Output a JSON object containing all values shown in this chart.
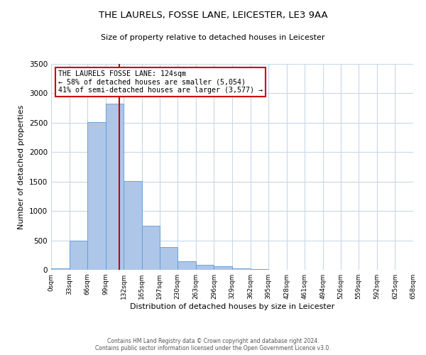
{
  "title": "THE LAURELS, FOSSE LANE, LEICESTER, LE3 9AA",
  "subtitle": "Size of property relative to detached houses in Leicester",
  "xlabel": "Distribution of detached houses by size in Leicester",
  "ylabel": "Number of detached properties",
  "bar_edges": [
    0,
    33,
    66,
    99,
    132,
    165,
    197,
    230,
    263,
    296,
    329,
    362,
    395,
    428,
    461,
    494,
    526,
    559,
    592,
    625,
    658
  ],
  "bar_heights": [
    25,
    490,
    2510,
    2820,
    1510,
    750,
    390,
    145,
    90,
    55,
    25,
    15,
    5,
    0,
    0,
    0,
    0,
    0,
    0,
    0
  ],
  "bar_color": "#aec6e8",
  "bar_edge_color": "#5b9bd5",
  "property_size": 124,
  "vline_color": "#cc0000",
  "annotation_box_color": "#cc0000",
  "annotation_text_line1": "THE LAURELS FOSSE LANE: 124sqm",
  "annotation_text_line2": "← 58% of detached houses are smaller (5,054)",
  "annotation_text_line3": "41% of semi-detached houses are larger (3,577) →",
  "ylim": [
    0,
    3500
  ],
  "yticks": [
    0,
    500,
    1000,
    1500,
    2000,
    2500,
    3000,
    3500
  ],
  "tick_labels": [
    "0sqm",
    "33sqm",
    "66sqm",
    "99sqm",
    "132sqm",
    "165sqm",
    "197sqm",
    "230sqm",
    "263sqm",
    "296sqm",
    "329sqm",
    "362sqm",
    "395sqm",
    "428sqm",
    "461sqm",
    "494sqm",
    "526sqm",
    "559sqm",
    "592sqm",
    "625sqm",
    "658sqm"
  ],
  "footer_line1": "Contains HM Land Registry data © Crown copyright and database right 2024.",
  "footer_line2": "Contains public sector information licensed under the Open Government Licence v3.0.",
  "bg_color": "#ffffff",
  "grid_color": "#c8d8e8"
}
